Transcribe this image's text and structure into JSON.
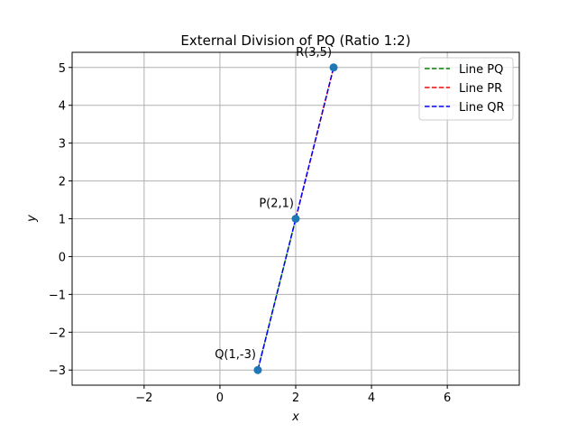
{
  "chart_data": {
    "type": "line",
    "title": "External Division of PQ (Ratio 1:2)",
    "xlabel": "x",
    "ylabel": "y",
    "xlim": [
      -3.9,
      7.9
    ],
    "ylim": [
      -3.4,
      5.4
    ],
    "xticks": [
      -2,
      0,
      2,
      4,
      6
    ],
    "yticks": [
      -3,
      -2,
      -1,
      0,
      1,
      2,
      3,
      4,
      5
    ],
    "grid": true,
    "legend_position": "top-right",
    "points": [
      {
        "label": "P(2,1)",
        "x": 2,
        "y": 1
      },
      {
        "label": "Q(1,-3)",
        "x": 1,
        "y": -3
      },
      {
        "label": "R(3,5)",
        "x": 3,
        "y": 5
      }
    ],
    "series": [
      {
        "name": "Line PQ",
        "color": "#008000",
        "x": [
          2,
          1
        ],
        "y": [
          1,
          -3
        ]
      },
      {
        "name": "Line PR",
        "color": "#ff0000",
        "x": [
          2,
          3
        ],
        "y": [
          1,
          5
        ]
      },
      {
        "name": "Line QR",
        "color": "#0000ff",
        "x": [
          1,
          3
        ],
        "y": [
          -3,
          5
        ]
      }
    ],
    "marker_color": "#1f77b4"
  }
}
